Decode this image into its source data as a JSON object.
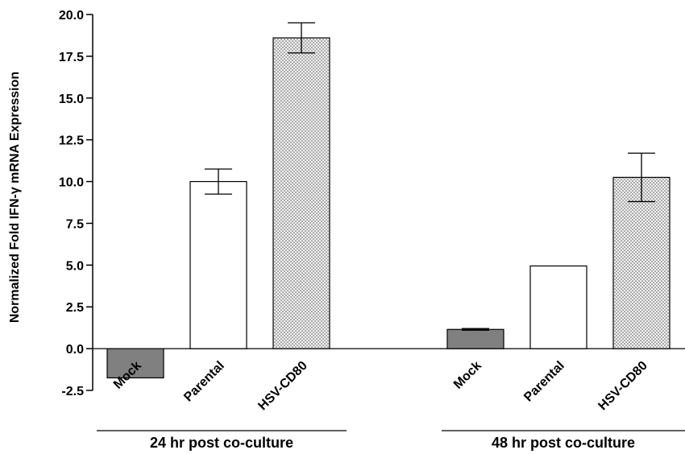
{
  "chart_data": {
    "type": "bar",
    "ylabel": "Normalized Fold IFN-γ mRNA Expression",
    "ylim": [
      -2.5,
      20.0
    ],
    "yticks": [
      "-2.5",
      "0.0",
      "2.5",
      "5.0",
      "7.5",
      "10.0",
      "12.5",
      "15.0",
      "17.5",
      "20.0"
    ],
    "grid": false,
    "groups": [
      {
        "label": "24 hr post co-culture",
        "bars": [
          {
            "category": "Mock",
            "value": -1.75,
            "error": 0.0,
            "fill": "gray"
          },
          {
            "category": "Parental",
            "value": 10.0,
            "error": 0.75,
            "fill": "white"
          },
          {
            "category": "HSV-CD80",
            "value": 18.6,
            "error": 0.9,
            "fill": "dotted"
          }
        ]
      },
      {
        "label": "48 hr post co-culture",
        "bars": [
          {
            "category": "Mock",
            "value": 1.15,
            "error": 0.05,
            "fill": "gray"
          },
          {
            "category": "Parental",
            "value": 4.95,
            "error": 0.0,
            "fill": "white"
          },
          {
            "category": "HSV-CD80",
            "value": 10.25,
            "error": 1.45,
            "fill": "dotted"
          }
        ]
      }
    ],
    "colors": {
      "gray": "#808080",
      "white": "#ffffff",
      "dotted_bg": "#f2f2f2",
      "dotted_dot": "#4a4a4a",
      "stroke": "#000000"
    }
  }
}
